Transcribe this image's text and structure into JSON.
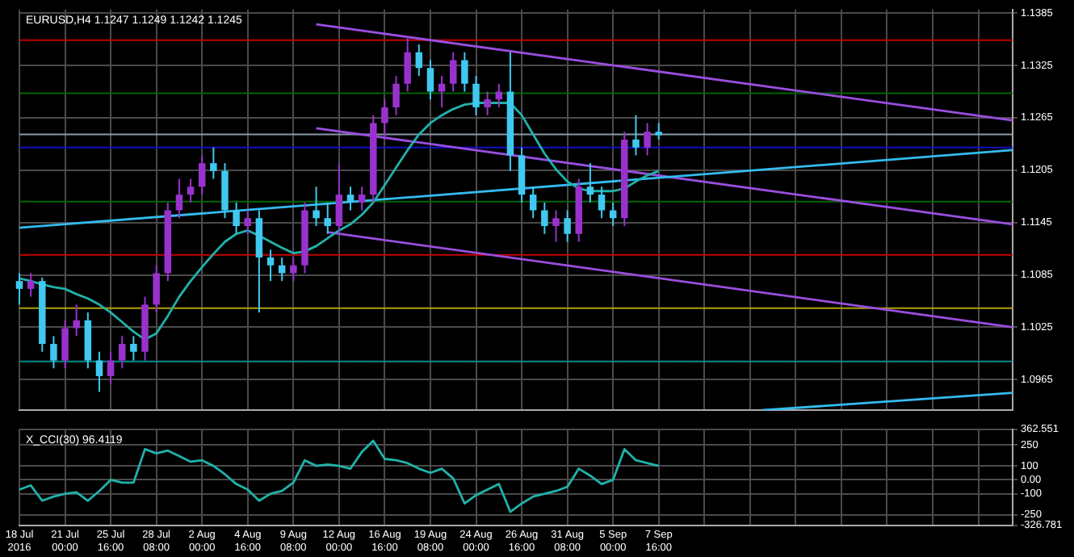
{
  "chart_data": [
    {
      "type": "candlestick",
      "title": "EURUSD,H4 1.1247 1.1249 1.1242 1.1245",
      "categories": [
        null,
        null,
        null,
        null,
        null,
        null,
        null,
        null,
        null,
        null,
        null,
        null,
        null,
        null,
        null,
        null,
        null,
        null,
        null,
        null,
        null,
        null,
        null,
        null,
        null,
        null,
        null,
        null,
        null,
        null,
        null,
        null,
        null,
        null,
        null,
        null,
        null,
        null,
        null,
        null,
        null,
        null,
        null,
        null,
        null,
        null,
        null,
        null,
        null,
        null,
        null,
        null,
        null,
        null,
        null,
        null,
        null,
        null,
        null,
        null,
        null,
        null,
        null,
        null,
        null,
        null,
        null,
        null,
        null,
        null,
        null,
        null,
        null,
        null,
        null,
        null,
        null,
        null,
        null,
        null,
        null,
        null,
        null,
        null,
        null,
        null,
        null,
        null
      ],
      "ohlc": [
        [
          1.1078,
          1.1087,
          1.1051,
          1.1069
        ],
        [
          1.1069,
          1.1087,
          1.106,
          1.1078
        ],
        [
          1.1078,
          1.1082,
          1.0997,
          1.1006
        ],
        [
          1.1006,
          1.1015,
          1.0978,
          1.0987
        ],
        [
          1.0987,
          1.1033,
          1.0978,
          1.1024
        ],
        [
          1.1024,
          1.1051,
          1.1015,
          1.1033
        ],
        [
          1.1033,
          1.1042,
          1.0978,
          1.0987
        ],
        [
          1.0987,
          1.0997,
          1.0951,
          1.0969
        ],
        [
          1.0969,
          1.0997,
          1.096,
          1.0987
        ],
        [
          1.0987,
          1.1015,
          1.0978,
          1.1006
        ],
        [
          1.1006,
          1.1015,
          1.0987,
          1.0997
        ],
        [
          1.0997,
          1.106,
          1.0987,
          1.1051
        ],
        [
          1.1051,
          1.1096,
          1.1042,
          1.1087
        ],
        [
          1.1087,
          1.1168,
          1.1078,
          1.1159
        ],
        [
          1.1159,
          1.1195,
          1.115,
          1.1177
        ],
        [
          1.1177,
          1.1195,
          1.1168,
          1.1186
        ],
        [
          1.1186,
          1.1222,
          1.1177,
          1.1213
        ],
        [
          1.1213,
          1.1231,
          1.1195,
          1.1204
        ],
        [
          1.1204,
          1.1213,
          1.115,
          1.1159
        ],
        [
          1.1159,
          1.1168,
          1.1132,
          1.1141
        ],
        [
          1.1141,
          1.1159,
          1.1132,
          1.115
        ],
        [
          1.115,
          1.1159,
          1.1042,
          1.1105
        ],
        [
          1.1105,
          1.1114,
          1.1078,
          1.1096
        ],
        [
          1.1096,
          1.1105,
          1.1078,
          1.1087
        ],
        [
          1.1087,
          1.1105,
          1.1078,
          1.1096
        ],
        [
          1.1096,
          1.1168,
          1.1087,
          1.1159
        ],
        [
          1.1159,
          1.1186,
          1.1141,
          1.115
        ],
        [
          1.115,
          1.1168,
          1.1132,
          1.1141
        ],
        [
          1.1141,
          1.1213,
          1.1132,
          1.1177
        ],
        [
          1.1177,
          1.1186,
          1.1159,
          1.1168
        ],
        [
          1.1168,
          1.1186,
          1.1159,
          1.1177
        ],
        [
          1.1177,
          1.1268,
          1.1168,
          1.1259
        ],
        [
          1.1259,
          1.1286,
          1.124,
          1.1277
        ],
        [
          1.1277,
          1.1313,
          1.1268,
          1.1304
        ],
        [
          1.1304,
          1.1358,
          1.1295,
          1.134
        ],
        [
          1.134,
          1.1349,
          1.1313,
          1.1322
        ],
        [
          1.1322,
          1.1331,
          1.1286,
          1.1295
        ],
        [
          1.1295,
          1.1313,
          1.1277,
          1.1304
        ],
        [
          1.1304,
          1.134,
          1.1295,
          1.1331
        ],
        [
          1.1331,
          1.134,
          1.1295,
          1.1304
        ],
        [
          1.1304,
          1.1313,
          1.1268,
          1.1277
        ],
        [
          1.1277,
          1.1295,
          1.1268,
          1.1286
        ],
        [
          1.1286,
          1.1304,
          1.1277,
          1.1295
        ],
        [
          1.1295,
          1.134,
          1.1204,
          1.1222
        ],
        [
          1.1222,
          1.1231,
          1.1168,
          1.1177
        ],
        [
          1.1177,
          1.1186,
          1.115,
          1.1159
        ],
        [
          1.1159,
          1.1168,
          1.1132,
          1.1141
        ],
        [
          1.1141,
          1.1159,
          1.1123,
          1.115
        ],
        [
          1.115,
          1.1159,
          1.1123,
          1.1132
        ],
        [
          1.1132,
          1.1195,
          1.1123,
          1.1186
        ],
        [
          1.1186,
          1.1213,
          1.1168,
          1.1177
        ],
        [
          1.1177,
          1.1186,
          1.115,
          1.1159
        ],
        [
          1.1159,
          1.1168,
          1.1141,
          1.115
        ],
        [
          1.115,
          1.1249,
          1.1141,
          1.124
        ],
        [
          1.124,
          1.1268,
          1.1222,
          1.1231
        ],
        [
          1.1231,
          1.1259,
          1.1222,
          1.1249
        ],
        [
          1.1249,
          1.1259,
          1.124,
          1.1245
        ],
        null,
        null,
        null,
        null,
        null,
        null,
        null,
        null,
        null,
        null,
        null,
        null,
        null,
        null,
        null,
        null,
        null,
        null,
        null,
        null,
        null,
        null,
        null,
        null,
        null,
        null,
        null,
        null,
        null,
        null,
        null
      ],
      "colors": [
        "#40c8f0",
        "#9932cc",
        "#40c8f0",
        "#40c8f0",
        "#9932cc",
        "#9932cc",
        "#40c8f0",
        "#40c8f0",
        "#9932cc",
        "#9932cc",
        "#40c8f0",
        "#9932cc",
        "#9932cc",
        "#9932cc",
        "#9932cc",
        "#9932cc",
        "#9932cc",
        "#40c8f0",
        "#40c8f0",
        "#40c8f0",
        "#9932cc",
        "#40c8f0",
        "#40c8f0",
        "#40c8f0",
        "#9932cc",
        "#9932cc",
        "#40c8f0",
        "#40c8f0",
        "#9932cc",
        "#40c8f0",
        "#9932cc",
        "#9932cc",
        "#9932cc",
        "#9932cc",
        "#9932cc",
        "#40c8f0",
        "#40c8f0",
        "#9932cc",
        "#9932cc",
        "#40c8f0",
        "#40c8f0",
        "#9932cc",
        "#9932cc",
        "#40c8f0",
        "#40c8f0",
        "#40c8f0",
        "#40c8f0",
        "#9932cc",
        "#40c8f0",
        "#9932cc",
        "#40c8f0",
        "#40c8f0",
        "#40c8f0",
        "#9932cc",
        "#40c8f0",
        "#9932cc",
        "#40c8f0",
        null,
        null,
        null,
        null,
        null,
        null,
        null,
        null,
        null,
        null,
        null,
        null,
        null,
        null,
        null,
        null,
        null,
        null,
        null,
        null,
        null,
        null,
        null,
        null,
        null,
        null,
        null,
        null,
        null,
        null,
        null
      ],
      "series": [
        {
          "type": "line",
          "color": "#20b2aa",
          "values": [
            1.1081,
            1.1078,
            1.1074,
            1.1071,
            1.1069,
            1.1063,
            1.1058,
            1.1051,
            1.1042,
            1.1031,
            1.102,
            1.1011,
            1.1018,
            1.1038,
            1.106,
            1.1078,
            1.1094,
            1.1109,
            1.1123,
            1.1132,
            1.1136,
            1.113,
            1.1123,
            1.1116,
            1.111,
            1.1112,
            1.1118,
            1.1127,
            1.1136,
            1.1143,
            1.1154,
            1.1168,
            1.1188,
            1.1208,
            1.1228,
            1.1246,
            1.1259,
            1.1268,
            1.1275,
            1.128,
            1.1282,
            1.1282,
            1.1282,
            1.1282,
            1.1268,
            1.1246,
            1.1224,
            1.1206,
            1.1192,
            1.1184,
            1.1181,
            1.1181,
            1.1181,
            1.1184,
            1.1192,
            1.1199,
            1.1204,
            null,
            null,
            null,
            null,
            null,
            null,
            null,
            null,
            null,
            null,
            null,
            null,
            null,
            null,
            null,
            null,
            null,
            null,
            null,
            null,
            null,
            null,
            null,
            null,
            null,
            null,
            null,
            null,
            null,
            null,
            null
          ]
        },
        {
          "type": "line",
          "color": "#33bbee",
          "values": [
            1.1139,
            null,
            null,
            null,
            null,
            null,
            null,
            null,
            null,
            null,
            null,
            null,
            null,
            null,
            null,
            null,
            null,
            null,
            null,
            null,
            null,
            null,
            null,
            null,
            null,
            null,
            null,
            null,
            null,
            null,
            null,
            null,
            null,
            null,
            null,
            null,
            null,
            null,
            null,
            null,
            null,
            null,
            null,
            null,
            null,
            null,
            null,
            null,
            null,
            null,
            null,
            null,
            null,
            null,
            null,
            null,
            null,
            null,
            null,
            null,
            null,
            null,
            null,
            null,
            null,
            null,
            null,
            null,
            null,
            null,
            null,
            null,
            null,
            null,
            null,
            null,
            null,
            null,
            null,
            null,
            null,
            null,
            null,
            null,
            null,
            null,
            null,
            1.1228
          ]
        },
        {
          "type": "line",
          "color": "#33bbee",
          "values": [
            null,
            null,
            null,
            null,
            null,
            null,
            null,
            null,
            null,
            null,
            null,
            null,
            null,
            null,
            null,
            null,
            null,
            null,
            null,
            null,
            null,
            null,
            null,
            null,
            null,
            null,
            null,
            null,
            null,
            null,
            null,
            null,
            null,
            null,
            null,
            null,
            null,
            null,
            null,
            null,
            null,
            null,
            null,
            null,
            null,
            null,
            null,
            null,
            null,
            null,
            null,
            null,
            null,
            null,
            null,
            null,
            null,
            null,
            null,
            null,
            null,
            null,
            null,
            null,
            null,
            1.093,
            null,
            null,
            null,
            null,
            null,
            null,
            null,
            null,
            null,
            null,
            null,
            null,
            null,
            null,
            null,
            null,
            null,
            null,
            null,
            null,
            null,
            1.095
          ]
        },
        {
          "type": "line",
          "color": "#9a4ee0",
          "values": [
            null,
            null,
            null,
            null,
            null,
            null,
            null,
            null,
            null,
            null,
            null,
            null,
            null,
            null,
            null,
            null,
            null,
            null,
            null,
            null,
            null,
            null,
            null,
            null,
            null,
            null,
            1.1372,
            null,
            null,
            null,
            null,
            null,
            null,
            null,
            null,
            null,
            null,
            null,
            null,
            null,
            null,
            null,
            null,
            null,
            null,
            null,
            null,
            null,
            null,
            null,
            null,
            null,
            null,
            null,
            null,
            null,
            null,
            null,
            null,
            null,
            null,
            null,
            null,
            null,
            null,
            null,
            null,
            null,
            null,
            null,
            null,
            null,
            null,
            null,
            null,
            null,
            null,
            null,
            null,
            null,
            null,
            null,
            null,
            null,
            null,
            null,
            null,
            1.1262
          ]
        },
        {
          "type": "line",
          "color": "#9a4ee0",
          "values": [
            null,
            null,
            null,
            null,
            null,
            null,
            null,
            null,
            null,
            null,
            null,
            null,
            null,
            null,
            null,
            null,
            null,
            null,
            null,
            null,
            null,
            null,
            null,
            null,
            null,
            null,
            1.1253,
            null,
            null,
            null,
            null,
            null,
            null,
            null,
            null,
            null,
            null,
            null,
            null,
            null,
            null,
            null,
            null,
            null,
            null,
            null,
            null,
            null,
            null,
            null,
            null,
            null,
            null,
            null,
            null,
            null,
            null,
            null,
            null,
            null,
            null,
            null,
            null,
            null,
            null,
            null,
            null,
            null,
            null,
            null,
            null,
            null,
            null,
            null,
            null,
            null,
            null,
            null,
            null,
            null,
            null,
            null,
            null,
            null,
            null,
            null,
            null,
            1.1143
          ]
        },
        {
          "type": "line",
          "color": "#9a4ee0",
          "values": [
            null,
            null,
            null,
            null,
            null,
            null,
            null,
            null,
            null,
            null,
            null,
            null,
            null,
            null,
            null,
            null,
            null,
            null,
            null,
            null,
            null,
            null,
            null,
            null,
            null,
            null,
            null,
            1.1134,
            null,
            null,
            null,
            null,
            null,
            null,
            null,
            null,
            null,
            null,
            null,
            null,
            null,
            null,
            null,
            null,
            null,
            null,
            null,
            null,
            null,
            null,
            null,
            null,
            null,
            null,
            null,
            null,
            null,
            null,
            null,
            null,
            null,
            null,
            null,
            null,
            null,
            null,
            null,
            null,
            null,
            null,
            null,
            null,
            null,
            null,
            null,
            null,
            null,
            null,
            null,
            null,
            null,
            null,
            null,
            null,
            null,
            null,
            null,
            1.1025
          ]
        }
      ],
      "ref_lines": [
        {
          "axis": "y",
          "value": 1.1354,
          "color": "#c00000"
        },
        {
          "axis": "y",
          "value": 1.1293,
          "color": "#006400"
        },
        {
          "axis": "y",
          "value": 1.1246,
          "color": "#8a9aa8"
        },
        {
          "axis": "y",
          "value": 1.1231,
          "color": "#1010c0"
        },
        {
          "axis": "y",
          "value": 1.1169,
          "color": "#006400"
        },
        {
          "axis": "y",
          "value": 1.1108,
          "color": "#c00000"
        },
        {
          "axis": "y",
          "value": 1.1047,
          "color": "#b0a000"
        },
        {
          "axis": "y",
          "value": 1.0986,
          "color": "#008b8b"
        }
      ],
      "ylim": [
        1.093,
        1.1389
      ],
      "yticks": [
        1.1385,
        1.1325,
        1.1265,
        1.1205,
        1.1145,
        1.1085,
        1.1025,
        1.0965
      ],
      "grid": true,
      "tick_labels": "y"
    },
    {
      "type": "line",
      "title": "X_CCI(30) 96.4119",
      "color": "#20b2aa",
      "categories": [
        "18 Jul 2016",
        null,
        null,
        null,
        "21 Jul 00:00",
        null,
        null,
        null,
        "25 Jul 16:00",
        null,
        null,
        null,
        "28 Jul 08:00",
        null,
        null,
        null,
        "2 Aug 00:00",
        null,
        null,
        null,
        "4 Aug 16:00",
        null,
        null,
        null,
        "9 Aug 08:00",
        null,
        null,
        null,
        "12 Aug 00:00",
        null,
        null,
        null,
        "16 Aug 16:00",
        null,
        null,
        null,
        "19 Aug 08:00",
        null,
        null,
        null,
        "24 Aug 00:00",
        null,
        null,
        null,
        "26 Aug 16:00",
        null,
        null,
        null,
        "31 Aug 08:00",
        null,
        null,
        null,
        "5 Sep 00:00",
        null,
        null,
        null,
        "7 Sep 16:00",
        null,
        null,
        null,
        null,
        null,
        null,
        null,
        null,
        null,
        null,
        null,
        null,
        null,
        null,
        null,
        null,
        null,
        null,
        null,
        null,
        null,
        null,
        null,
        null,
        null,
        null,
        null,
        null,
        null,
        null,
        null
      ],
      "values": [
        -70,
        -40,
        -150,
        -120,
        -100,
        -90,
        -150,
        -80,
        0,
        -20,
        -20,
        220,
        190,
        210,
        170,
        130,
        140,
        100,
        40,
        -30,
        -70,
        -150,
        -100,
        -80,
        -20,
        140,
        100,
        110,
        100,
        80,
        200,
        280,
        150,
        140,
        120,
        80,
        50,
        80,
        10,
        -170,
        -110,
        -70,
        -30,
        -230,
        -170,
        -120,
        -100,
        -80,
        -50,
        80,
        30,
        -30,
        0,
        220,
        140,
        120,
        100,
        null,
        null,
        null,
        null,
        null,
        null,
        null,
        null,
        null,
        null,
        null,
        null,
        null,
        null,
        null,
        null,
        null,
        null,
        null,
        null,
        null,
        null,
        null,
        null,
        null,
        null,
        null,
        null,
        null,
        null,
        null
      ],
      "ylim": [
        -326.781,
        362.551
      ],
      "yticks": [
        362.551,
        250,
        100,
        {
          "value": 0,
          "label": "0.00"
        },
        -100,
        -250,
        -326.781
      ],
      "grid": true
    }
  ]
}
